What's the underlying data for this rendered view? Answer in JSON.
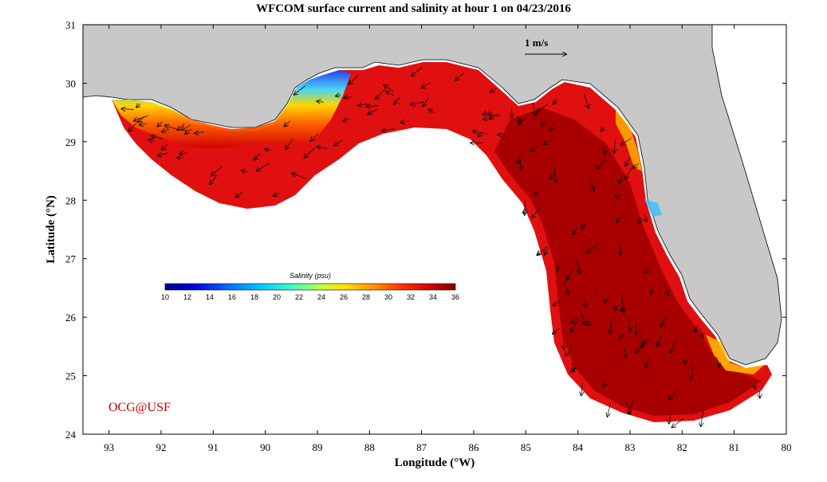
{
  "title": "WFCOM surface current and salinity at hour 1 on 04/23/2016",
  "xlabel": "Longitude (°W)",
  "ylabel": "Latitude (°N)",
  "x_ticks": [
    "93",
    "92",
    "91",
    "90",
    "89",
    "88",
    "87",
    "86",
    "85",
    "84",
    "83",
    "82",
    "81",
    "80"
  ],
  "y_ticks": [
    "31",
    "30",
    "29",
    "28",
    "27",
    "26",
    "25",
    "24"
  ],
  "colorbar": {
    "title": "Salinity (psu)",
    "ticks": [
      "10",
      "12",
      "14",
      "16",
      "18",
      "20",
      "22",
      "24",
      "26",
      "28",
      "30",
      "32",
      "34",
      "36"
    ],
    "colors": [
      "#00008f",
      "#0000d0",
      "#0030ff",
      "#0070ff",
      "#00b0ff",
      "#20f0ff",
      "#60ffb0",
      "#a0ff60",
      "#e0ff20",
      "#ffd000",
      "#ff9000",
      "#ff5000",
      "#e00000",
      "#a00000",
      "#800000"
    ]
  },
  "scale_arrow_label": "1 m/s",
  "credit": "OCG@USF",
  "colors": {
    "land": "#c8c8c8",
    "ocean_high": "#a00000",
    "ocean_mid": "#d01010",
    "shelf": "#ff4000"
  }
}
